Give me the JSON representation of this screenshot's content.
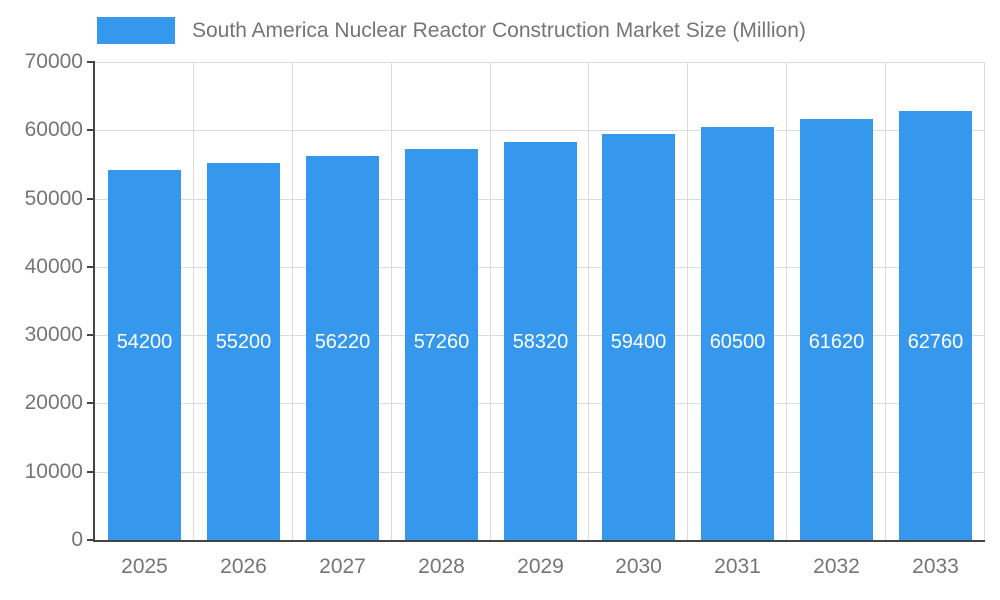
{
  "legend": {
    "title": "South America Nuclear Reactor Construction Market Size (Million)"
  },
  "colors": {
    "bar": "#3598EC",
    "value_label": "#FFFFFF",
    "axis_text": "#757575",
    "grid_line": "#DCDCDC",
    "axis_line": "#444444",
    "background": "#FFFFFF"
  },
  "chart_data": {
    "type": "bar",
    "title": "South America Nuclear Reactor Construction Market Size (Million)",
    "categories": [
      "2025",
      "2026",
      "2027",
      "2028",
      "2029",
      "2030",
      "2031",
      "2032",
      "2033"
    ],
    "values": [
      54200,
      55200,
      56220,
      57260,
      58320,
      59400,
      60500,
      61620,
      62760
    ],
    "xlabel": "",
    "ylabel": "",
    "ylim": [
      0,
      70000
    ],
    "yticks": [
      0,
      10000,
      20000,
      30000,
      40000,
      50000,
      60000,
      70000
    ],
    "grid": true,
    "legend_position": "top",
    "value_labels_visible": true
  }
}
